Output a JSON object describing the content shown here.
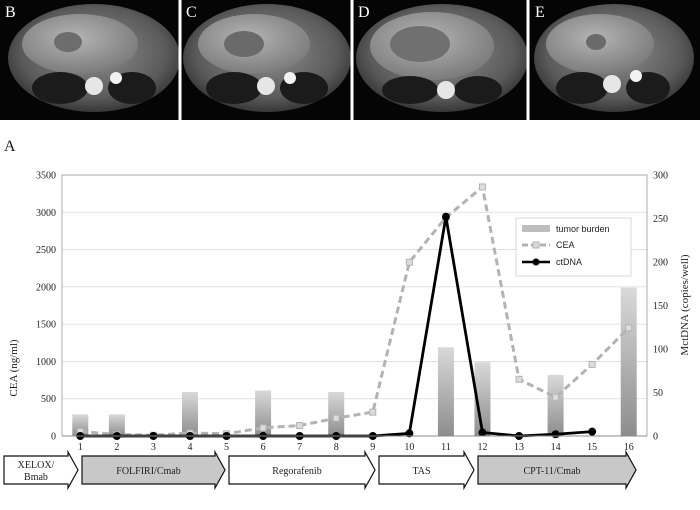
{
  "panels": [
    {
      "label": "B"
    },
    {
      "label": "C"
    },
    {
      "label": "D"
    },
    {
      "label": "E"
    }
  ],
  "figure_label": "A",
  "chart_data": {
    "type": "bar",
    "title": "",
    "x": [
      1,
      2,
      3,
      4,
      5,
      6,
      7,
      8,
      9,
      10,
      11,
      12,
      13,
      14,
      15,
      16
    ],
    "x_ticks": [
      "1",
      "2",
      "3",
      "4",
      "5",
      "6",
      "7",
      "8",
      "9",
      "10",
      "11",
      "12",
      "13",
      "14",
      "15",
      "16"
    ],
    "ylabel_left": "CEA (ng/ml)",
    "ylabel_right": "MctDNA (copies/well)",
    "ylim_left": [
      0,
      3500
    ],
    "ylim_right": [
      0,
      300
    ],
    "yticks_left": [
      "0",
      "500",
      "1000",
      "1500",
      "2000",
      "2500",
      "3000",
      "3500"
    ],
    "yticks_right": [
      "0",
      "50",
      "100",
      "150",
      "200",
      "250",
      "300"
    ],
    "series": [
      {
        "name": "tumor burden",
        "kind": "bar",
        "axis": "left",
        "values": [
          290,
          290,
          null,
          590,
          null,
          610,
          null,
          590,
          null,
          null,
          1190,
          990,
          null,
          820,
          null,
          1990
        ]
      },
      {
        "name": "CEA",
        "kind": "dashed-line",
        "axis": "left",
        "values": [
          60,
          20,
          10,
          40,
          30,
          110,
          140,
          240,
          320,
          2330,
          2930,
          3340,
          760,
          520,
          960,
          1450
        ]
      },
      {
        "name": "ctDNA",
        "kind": "line",
        "axis": "right",
        "values": [
          0,
          0,
          0,
          0,
          0,
          0,
          0,
          0,
          0,
          3,
          252,
          4,
          0,
          2,
          5,
          null
        ]
      }
    ],
    "legend": {
      "position": "top-right",
      "entries": [
        "tumor burden",
        "CEA",
        "ctDNA"
      ]
    },
    "colors": {
      "bar": "#bdbdbd",
      "cea": "#b3b3b3",
      "ctdna": "#000000"
    }
  },
  "timeline": [
    {
      "label": "XELOX/\nBmab",
      "line1": "XELOX/",
      "line2": "Bmab",
      "fill": "#ffffff"
    },
    {
      "label": "FOLFIRI/Cmab",
      "fill": "#c8c8c8"
    },
    {
      "label": "Regorafenib",
      "fill": "#ffffff"
    },
    {
      "label": "TAS",
      "fill": "#ffffff"
    },
    {
      "label": "CPT-11/Cmab",
      "fill": "#c8c8c8"
    }
  ]
}
